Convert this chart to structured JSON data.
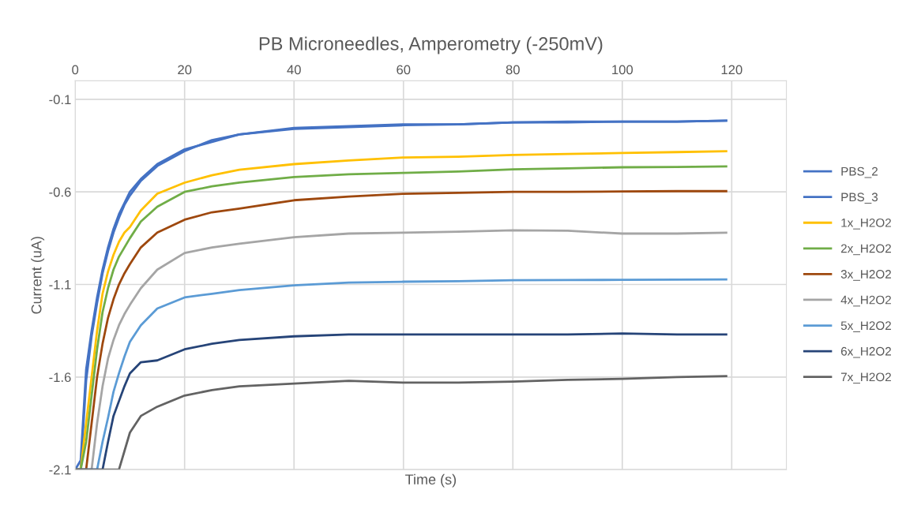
{
  "chart_data": {
    "type": "line",
    "title": "PB Microneedles, Amperometry (-250mV)",
    "xlabel": "Time (s)",
    "ylabel": "Current (uA)",
    "x": [
      0,
      1,
      2,
      3,
      4,
      5,
      6,
      7,
      8,
      9,
      10,
      12,
      15,
      20,
      25,
      30,
      40,
      50,
      60,
      70,
      80,
      90,
      100,
      110,
      119
    ],
    "xlim": [
      0,
      130
    ],
    "xticks": [
      0,
      20,
      40,
      60,
      80,
      100,
      120
    ],
    "ylim": [
      -2.1,
      0
    ],
    "yticks": [
      -2.1,
      -1.6,
      -1.1,
      -0.6,
      -0.1
    ],
    "grid": true,
    "legend": "right",
    "marker": "none",
    "line_style": "solid",
    "series": [
      {
        "name": "PBS_2",
        "color": "#4472c4",
        "values": [
          -2.1,
          -2.05,
          -1.56,
          -1.35,
          -1.17,
          -1.02,
          -0.9,
          -0.8,
          -0.72,
          -0.66,
          -0.6,
          -0.53,
          -0.45,
          -0.37,
          -0.33,
          -0.29,
          -0.26,
          -0.25,
          -0.24,
          -0.235,
          -0.225,
          -0.225,
          -0.22,
          -0.22,
          -0.215
        ]
      },
      {
        "name": "PBS_3",
        "color": "#4472c4",
        "values": [
          -2.1,
          -2.1,
          -1.62,
          -1.38,
          -1.2,
          -1.04,
          -0.92,
          -0.82,
          -0.74,
          -0.67,
          -0.62,
          -0.54,
          -0.46,
          -0.38,
          -0.32,
          -0.29,
          -0.255,
          -0.245,
          -0.235,
          -0.235,
          -0.225,
          -0.22,
          -0.22,
          -0.22,
          -0.215
        ]
      },
      {
        "name": "1x_H2O2",
        "color": "#ffc000",
        "values": [
          -2.1,
          -2.1,
          -1.85,
          -1.6,
          -1.35,
          -1.15,
          -1.03,
          -0.94,
          -0.87,
          -0.82,
          -0.79,
          -0.7,
          -0.61,
          -0.55,
          -0.51,
          -0.48,
          -0.45,
          -0.43,
          -0.414,
          -0.41,
          -0.4,
          -0.395,
          -0.39,
          -0.385,
          -0.38
        ]
      },
      {
        "name": "2x_H2O2",
        "color": "#70ad47",
        "values": [
          -2.1,
          -2.1,
          -1.95,
          -1.7,
          -1.45,
          -1.25,
          -1.12,
          -1.02,
          -0.95,
          -0.9,
          -0.85,
          -0.76,
          -0.68,
          -0.6,
          -0.57,
          -0.55,
          -0.52,
          -0.505,
          -0.497,
          -0.49,
          -0.478,
          -0.473,
          -0.467,
          -0.465,
          -0.462
        ]
      },
      {
        "name": "3x_H2O2",
        "color": "#9e480e",
        "values": [
          -2.1,
          -2.1,
          -2.1,
          -1.85,
          -1.6,
          -1.42,
          -1.28,
          -1.18,
          -1.1,
          -1.04,
          -0.99,
          -0.9,
          -0.82,
          -0.75,
          -0.71,
          -0.69,
          -0.645,
          -0.625,
          -0.61,
          -0.605,
          -0.6,
          -0.6,
          -0.598,
          -0.596,
          -0.596
        ]
      },
      {
        "name": "4x_H2O2",
        "color": "#a5a5a5",
        "values": [
          -2.1,
          -2.1,
          -2.1,
          -2.1,
          -1.85,
          -1.65,
          -1.5,
          -1.4,
          -1.32,
          -1.26,
          -1.21,
          -1.12,
          -1.02,
          -0.93,
          -0.9,
          -0.88,
          -0.845,
          -0.825,
          -0.82,
          -0.815,
          -0.807,
          -0.81,
          -0.825,
          -0.825,
          -0.82
        ]
      },
      {
        "name": "5x_H2O2",
        "color": "#5b9bd5",
        "values": [
          -2.1,
          -2.1,
          -2.1,
          -2.1,
          -2.1,
          -1.95,
          -1.82,
          -1.68,
          -1.58,
          -1.49,
          -1.41,
          -1.32,
          -1.23,
          -1.17,
          -1.15,
          -1.13,
          -1.105,
          -1.09,
          -1.085,
          -1.082,
          -1.077,
          -1.076,
          -1.075,
          -1.074,
          -1.073
        ]
      },
      {
        "name": "6x_H2O2",
        "color": "#264478",
        "values": [
          -2.1,
          -2.1,
          -2.1,
          -2.1,
          -2.1,
          -2.1,
          -1.95,
          -1.81,
          -1.73,
          -1.65,
          -1.58,
          -1.52,
          -1.51,
          -1.45,
          -1.42,
          -1.4,
          -1.38,
          -1.37,
          -1.37,
          -1.37,
          -1.37,
          -1.37,
          -1.365,
          -1.37,
          -1.37
        ]
      },
      {
        "name": "7x_H2O2",
        "color": "#636363",
        "values": [
          -2.1,
          -2.1,
          -2.1,
          -2.1,
          -2.1,
          -2.1,
          -2.1,
          -2.1,
          -2.1,
          -2.0,
          -1.9,
          -1.81,
          -1.76,
          -1.7,
          -1.67,
          -1.65,
          -1.635,
          -1.62,
          -1.63,
          -1.63,
          -1.625,
          -1.615,
          -1.61,
          -1.6,
          -1.595
        ]
      }
    ]
  }
}
